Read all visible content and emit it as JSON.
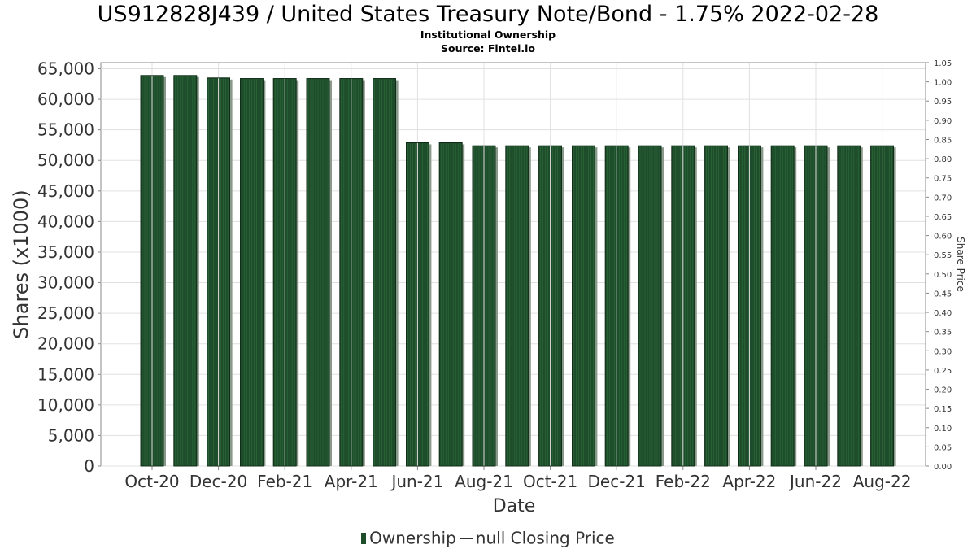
{
  "title": "US912828J439 / United States Treasury Note/Bond - 1.75% 2022-02-28",
  "subtitle": "Institutional Ownership",
  "source": "Source: Fintel.io",
  "legend": {
    "ownership": "Ownership",
    "price": "null Closing Price"
  },
  "colors": {
    "bar": "#1e4d2b",
    "bar_shadow": "#8a9a8a",
    "grid": "#e0e0e0"
  },
  "chart_data": {
    "type": "bar",
    "xlabel": "Date",
    "ylabel": "Shares (x1000)",
    "y2label": "Share Price",
    "ylim": [
      0,
      66000
    ],
    "y2lim": [
      0,
      1.05
    ],
    "yticks": [
      "0",
      "5,000",
      "10,000",
      "15,000",
      "20,000",
      "25,000",
      "30,000",
      "35,000",
      "40,000",
      "45,000",
      "50,000",
      "55,000",
      "60,000",
      "65,000"
    ],
    "y2ticks": [
      "0.00",
      "0.05",
      "0.10",
      "0.15",
      "0.20",
      "0.25",
      "0.30",
      "0.35",
      "0.40",
      "0.45",
      "0.50",
      "0.55",
      "0.60",
      "0.65",
      "0.70",
      "0.75",
      "0.80",
      "0.85",
      "0.90",
      "0.95",
      "1.00",
      "1.05"
    ],
    "xticks": [
      "Oct-20",
      "Dec-20",
      "Feb-21",
      "Apr-21",
      "Jun-21",
      "Aug-21",
      "Oct-21",
      "Dec-21",
      "Feb-22",
      "Apr-22",
      "Jun-22",
      "Aug-22"
    ],
    "grid": true,
    "legend_position": "bottom-center",
    "series": [
      {
        "name": "Ownership",
        "values": [
          63900,
          63900,
          63500,
          63400,
          63400,
          63400,
          63400,
          63400,
          52900,
          52900,
          52400,
          52400,
          52400,
          52400,
          52400,
          52400,
          52400,
          52400,
          52400,
          52400,
          52400,
          52400,
          52400
        ]
      }
    ]
  }
}
